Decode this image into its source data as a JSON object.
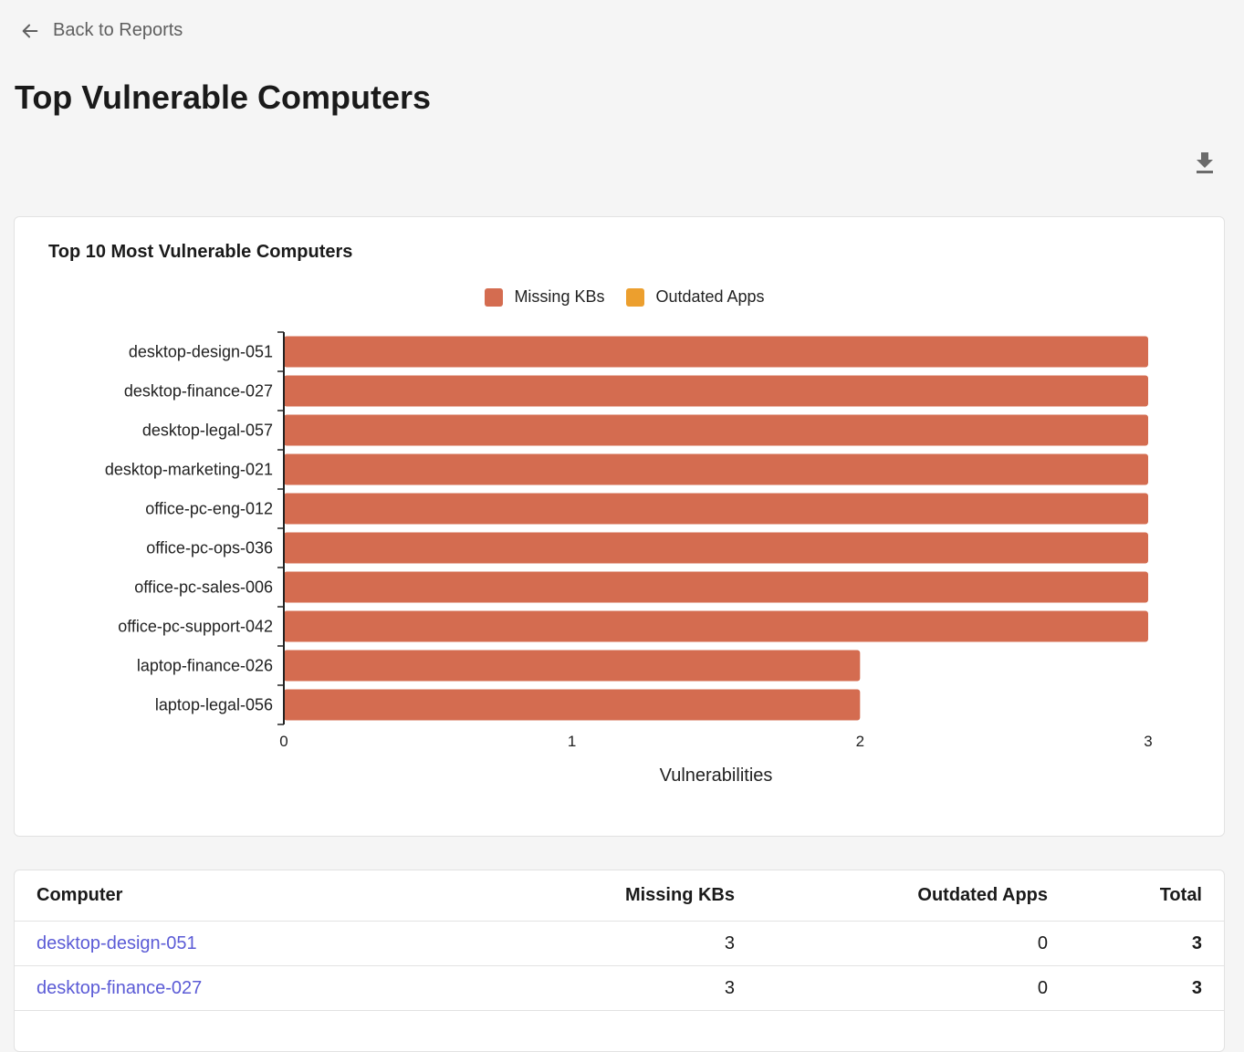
{
  "nav": {
    "back_label": "Back to Reports"
  },
  "page_title": "Top Vulnerable Computers",
  "chart_card": {
    "title": "Top 10 Most Vulnerable Computers"
  },
  "chart_data": {
    "type": "bar",
    "orientation": "horizontal",
    "stacked": true,
    "categories": [
      "desktop-design-051",
      "desktop-finance-027",
      "desktop-legal-057",
      "desktop-marketing-021",
      "office-pc-eng-012",
      "office-pc-ops-036",
      "office-pc-sales-006",
      "office-pc-support-042",
      "laptop-finance-026",
      "laptop-legal-056"
    ],
    "series": [
      {
        "name": "Missing KBs",
        "color": "#d46c50",
        "values": [
          3,
          3,
          3,
          3,
          3,
          3,
          3,
          3,
          2,
          2
        ]
      },
      {
        "name": "Outdated Apps",
        "color": "#ec9f2e",
        "values": [
          0,
          0,
          0,
          0,
          0,
          0,
          0,
          0,
          0,
          0
        ]
      }
    ],
    "xlabel": "Vulnerabilities",
    "xlim": [
      0,
      3
    ],
    "xticks": [
      "0",
      "1",
      "2",
      "3"
    ],
    "legend": "top-center",
    "grid": false
  },
  "table": {
    "headers": [
      "Computer",
      "Missing KBs",
      "Outdated Apps",
      "Total"
    ],
    "rows": [
      {
        "computer": "desktop-design-051",
        "missing_kbs": "3",
        "outdated_apps": "0",
        "total": "3"
      },
      {
        "computer": "desktop-finance-027",
        "missing_kbs": "3",
        "outdated_apps": "0",
        "total": "3"
      }
    ]
  },
  "icons": {
    "back": "arrow-left-icon",
    "download": "download-icon"
  }
}
